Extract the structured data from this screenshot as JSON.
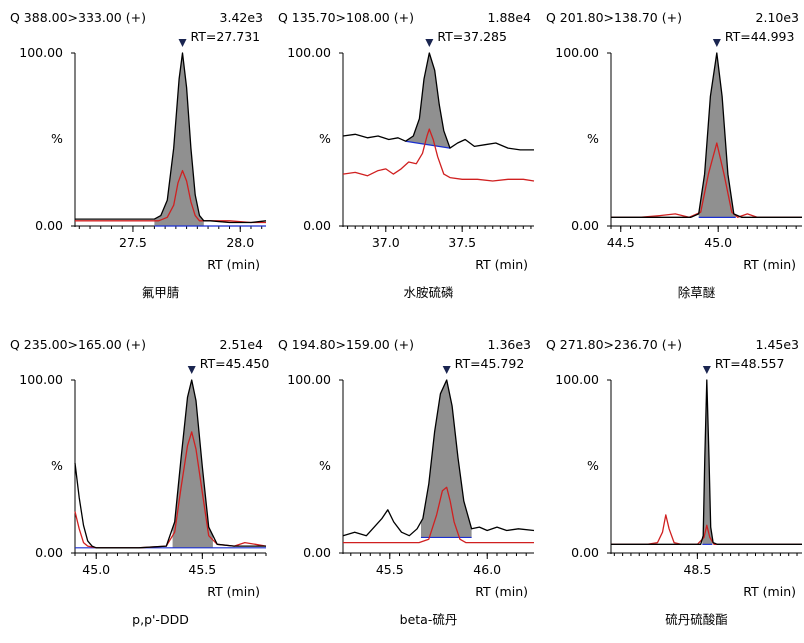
{
  "chart_data": [
    {
      "type": "line",
      "title": "Q 388.00>333.00 (+)",
      "intensity": "3.42e3",
      "rt_label": "RT=27.731",
      "compound": "氟甲腈",
      "xlabel": "RT (min)",
      "ylabel": "%",
      "yticks": [
        "100.00",
        "0.00"
      ],
      "xlim": [
        27.23,
        28.12
      ],
      "ylim": [
        0,
        100
      ],
      "xticks": [
        27.5,
        28.0
      ],
      "xtick_labels": [
        "27.5",
        "28.0"
      ],
      "peak": {
        "start": 27.6,
        "apex": 27.731,
        "end": 27.83
      },
      "baseline": {
        "x": [
          27.6,
          28.12
        ],
        "y": [
          0,
          0
        ]
      },
      "series": [
        {
          "color": "#000000",
          "x": [
            27.23,
            27.4,
            27.55,
            27.6,
            27.63,
            27.66,
            27.69,
            27.715,
            27.731,
            27.75,
            27.77,
            27.79,
            27.81,
            27.83,
            27.86,
            27.95,
            28.05,
            28.12
          ],
          "y": [
            4,
            4,
            4,
            4,
            6,
            15,
            45,
            85,
            100,
            80,
            45,
            18,
            6,
            3,
            3,
            2,
            2,
            3
          ]
        },
        {
          "color": "#d02020",
          "x": [
            27.23,
            27.4,
            27.55,
            27.62,
            27.66,
            27.69,
            27.71,
            27.731,
            27.75,
            27.77,
            27.79,
            27.81,
            27.85,
            27.95,
            28.05,
            28.12
          ],
          "y": [
            3,
            3,
            3,
            3,
            5,
            12,
            25,
            32,
            26,
            14,
            6,
            3,
            3,
            3,
            2,
            2
          ]
        }
      ]
    },
    {
      "type": "line",
      "title": "Q 135.70>108.00 (+)",
      "intensity": "1.88e4",
      "rt_label": "RT=37.285",
      "compound": "水胺硫磷",
      "xlabel": "RT (min)",
      "ylabel": "%",
      "yticks": [
        "100.00",
        "0.00"
      ],
      "xlim": [
        36.72,
        37.97
      ],
      "ylim": [
        0,
        100
      ],
      "xticks": [
        37.0,
        37.5
      ],
      "xtick_labels": [
        "37.0",
        "37.5"
      ],
      "peak": {
        "start": 37.13,
        "apex": 37.285,
        "end": 37.42
      },
      "baseline": {
        "x": [
          37.13,
          37.42
        ],
        "y": [
          49,
          45
        ]
      },
      "series": [
        {
          "color": "#000000",
          "x": [
            36.72,
            36.8,
            36.88,
            36.95,
            37.02,
            37.08,
            37.13,
            37.18,
            37.22,
            37.25,
            37.285,
            37.32,
            37.35,
            37.38,
            37.42,
            37.47,
            37.52,
            37.58,
            37.65,
            37.72,
            37.8,
            37.88,
            37.97
          ],
          "y": [
            52,
            53,
            51,
            52,
            50,
            51,
            49,
            52,
            62,
            85,
            100,
            90,
            70,
            55,
            45,
            48,
            50,
            46,
            47,
            48,
            45,
            44,
            44
          ]
        },
        {
          "color": "#d02020",
          "x": [
            36.72,
            36.8,
            36.88,
            36.95,
            37.0,
            37.05,
            37.1,
            37.15,
            37.2,
            37.24,
            37.27,
            37.285,
            37.31,
            37.34,
            37.38,
            37.42,
            37.5,
            37.6,
            37.7,
            37.8,
            37.9,
            37.97
          ],
          "y": [
            30,
            31,
            29,
            32,
            33,
            30,
            33,
            37,
            36,
            42,
            52,
            56,
            50,
            40,
            30,
            28,
            27,
            27,
            26,
            27,
            27,
            26
          ]
        }
      ]
    },
    {
      "type": "line",
      "title": "Q 201.80>138.70 (+)",
      "intensity": "2.10e3",
      "rt_label": "RT=44.993",
      "compound": "除草醚",
      "xlabel": "RT (min)",
      "ylabel": "%",
      "yticks": [
        "100.00",
        "0.00"
      ],
      "xlim": [
        44.45,
        45.43
      ],
      "ylim": [
        0,
        100
      ],
      "xticks": [
        44.5,
        45.0
      ],
      "xtick_labels": [
        "44.5",
        "45.0"
      ],
      "peak": {
        "start": 44.9,
        "apex": 44.993,
        "end": 45.09
      },
      "baseline": {
        "x": [
          44.9,
          45.09
        ],
        "y": [
          5,
          5
        ]
      },
      "series": [
        {
          "color": "#000000",
          "x": [
            44.45,
            44.6,
            44.75,
            44.86,
            44.9,
            44.93,
            44.96,
            44.993,
            45.02,
            45.05,
            45.08,
            45.12,
            45.2,
            45.3,
            45.43
          ],
          "y": [
            5,
            5,
            5,
            5,
            7,
            30,
            75,
            100,
            75,
            30,
            7,
            5,
            5,
            5,
            5
          ]
        },
        {
          "color": "#d02020",
          "x": [
            44.45,
            44.6,
            44.7,
            44.78,
            44.85,
            44.91,
            44.95,
            44.993,
            45.03,
            45.07,
            45.1,
            45.15,
            45.2,
            45.3,
            45.43
          ],
          "y": [
            5,
            5,
            6,
            7,
            5,
            8,
            30,
            48,
            30,
            8,
            5,
            7,
            5,
            5,
            5
          ]
        }
      ]
    },
    {
      "type": "line",
      "title": "Q 235.00>165.00 (+)",
      "intensity": "2.51e4",
      "rt_label": "RT=45.450",
      "compound": "p,p'-DDD",
      "xlabel": "RT (min)",
      "ylabel": "%",
      "yticks": [
        "100.00",
        "0.00"
      ],
      "xlim": [
        44.9,
        45.8
      ],
      "ylim": [
        0,
        100
      ],
      "xticks": [
        45.0,
        45.5
      ],
      "xtick_labels": [
        "45.0",
        "45.5"
      ],
      "peak": {
        "start": 45.36,
        "apex": 45.45,
        "end": 45.55
      },
      "baseline": {
        "x": [
          44.9,
          45.8
        ],
        "y": [
          3,
          3
        ]
      },
      "series": [
        {
          "color": "#000000",
          "x": [
            44.9,
            44.92,
            44.94,
            44.96,
            44.98,
            45.0,
            45.05,
            45.2,
            45.33,
            45.37,
            45.4,
            45.43,
            45.45,
            45.47,
            45.5,
            45.53,
            45.57,
            45.65,
            45.72,
            45.8
          ],
          "y": [
            52,
            32,
            16,
            7,
            4,
            3,
            3,
            3,
            4,
            18,
            55,
            90,
            100,
            88,
            50,
            15,
            5,
            4,
            4,
            4
          ]
        },
        {
          "color": "#d02020",
          "x": [
            44.9,
            44.92,
            44.94,
            44.96,
            45.0,
            45.05,
            45.2,
            45.33,
            45.37,
            45.4,
            45.43,
            45.45,
            45.47,
            45.5,
            45.53,
            45.57,
            45.65,
            45.7,
            45.75,
            45.8
          ],
          "y": [
            24,
            14,
            6,
            4,
            3,
            3,
            3,
            4,
            12,
            38,
            62,
            70,
            60,
            35,
            10,
            5,
            4,
            6,
            5,
            4
          ]
        }
      ]
    },
    {
      "type": "line",
      "title": "Q 194.80>159.00 (+)",
      "intensity": "1.36e3",
      "rt_label": "RT=45.792",
      "compound": "beta-硫丹",
      "xlabel": "RT (min)",
      "ylabel": "%",
      "yticks": [
        "100.00",
        "0.00"
      ],
      "xlim": [
        45.26,
        46.24
      ],
      "ylim": [
        0,
        100
      ],
      "xticks": [
        45.5,
        46.0
      ],
      "xtick_labels": [
        "45.5",
        "46.0"
      ],
      "peak": {
        "start": 45.66,
        "apex": 45.792,
        "end": 45.92
      },
      "baseline": {
        "x": [
          45.66,
          45.92
        ],
        "y": [
          9,
          9
        ]
      },
      "series": [
        {
          "color": "#000000",
          "x": [
            45.26,
            45.32,
            45.38,
            45.42,
            45.46,
            45.49,
            45.52,
            45.56,
            45.6,
            45.64,
            45.67,
            45.7,
            45.73,
            45.76,
            45.792,
            45.82,
            45.85,
            45.88,
            45.92,
            45.96,
            46.0,
            46.05,
            46.1,
            46.16,
            46.24
          ],
          "y": [
            10,
            12,
            10,
            15,
            20,
            25,
            18,
            12,
            10,
            14,
            20,
            40,
            70,
            92,
            100,
            85,
            55,
            30,
            14,
            15,
            13,
            15,
            13,
            14,
            13
          ]
        },
        {
          "color": "#d02020",
          "x": [
            45.26,
            45.4,
            45.55,
            45.65,
            45.7,
            45.74,
            45.77,
            45.792,
            45.81,
            45.83,
            45.86,
            45.89,
            45.93,
            46.0,
            46.1,
            46.24
          ],
          "y": [
            6,
            6,
            6,
            6,
            8,
            22,
            36,
            38,
            30,
            18,
            8,
            6,
            6,
            6,
            6,
            6
          ]
        }
      ]
    },
    {
      "type": "line",
      "title": "Q 271.80>236.70 (+)",
      "intensity": "1.45e3",
      "rt_label": "RT=48.557",
      "compound": "硫丹硫酸酯",
      "xlabel": "RT (min)",
      "ylabel": "%",
      "yticks": [
        "100.00",
        "0.00"
      ],
      "xlim": [
        47.98,
        49.13
      ],
      "ylim": [
        0,
        100
      ],
      "xticks": [
        48.5
      ],
      "xtick_labels": [
        "48.5"
      ],
      "peak": {
        "start": 48.53,
        "apex": 48.557,
        "end": 48.59
      },
      "baseline": {
        "x": [
          48.53,
          48.59
        ],
        "y": [
          5,
          5
        ]
      },
      "series": [
        {
          "color": "#000000",
          "x": [
            47.98,
            48.2,
            48.4,
            48.52,
            48.535,
            48.545,
            48.557,
            48.57,
            48.58,
            48.595,
            48.62,
            48.8,
            49.0,
            49.13
          ],
          "y": [
            5,
            5,
            5,
            5,
            10,
            55,
            100,
            55,
            15,
            6,
            5,
            5,
            5,
            5
          ]
        },
        {
          "color": "#d02020",
          "x": [
            47.98,
            48.1,
            48.2,
            48.26,
            48.29,
            48.31,
            48.33,
            48.36,
            48.4,
            48.5,
            48.54,
            48.557,
            48.575,
            48.6,
            48.7,
            48.9,
            49.13
          ],
          "y": [
            5,
            5,
            5,
            6,
            12,
            22,
            14,
            6,
            5,
            5,
            9,
            16,
            9,
            5,
            5,
            5,
            5
          ]
        }
      ]
    }
  ]
}
